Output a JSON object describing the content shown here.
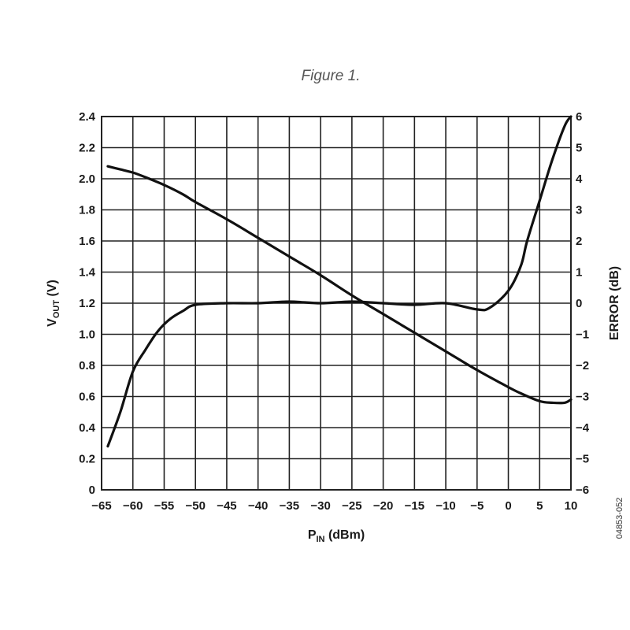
{
  "chart_data": {
    "type": "line",
    "caption": "Figure 1.",
    "figure_id": "04853-052",
    "xlabel": {
      "main": "P",
      "sub": "IN",
      "unit": " (dBm)"
    },
    "ylabel_left": {
      "main": "V",
      "sub": "OUT",
      "unit": " (V)"
    },
    "ylabel_right": "ERROR (dB)",
    "xlim": [
      -65,
      10
    ],
    "ylim_left": [
      0,
      2.4
    ],
    "ylim_right": [
      -6,
      6
    ],
    "x_ticks": [
      "−65",
      "−60",
      "−55",
      "−50",
      "−45",
      "−40",
      "−35",
      "−30",
      "−25",
      "−20",
      "−15",
      "−10",
      "−5",
      "0",
      "5",
      "10"
    ],
    "y_left_ticks": [
      "0",
      "0.2",
      "0.4",
      "0.6",
      "0.8",
      "1.0",
      "1.2",
      "1.4",
      "1.6",
      "1.8",
      "2.0",
      "2.2",
      "2.4"
    ],
    "y_right_ticks": [
      "−6",
      "−5",
      "−4",
      "−3",
      "−2",
      "−1",
      "0",
      "1",
      "2",
      "3",
      "4",
      "5",
      "6"
    ],
    "grid": true,
    "series": [
      {
        "axis": "left",
        "x": [
          -64,
          -62,
          -60,
          -58,
          -55,
          -52,
          -50,
          -45,
          -40,
          -35,
          -30,
          -25,
          -20,
          -15,
          -10,
          -5,
          0,
          2,
          5,
          7,
          9,
          10
        ],
        "values": [
          2.08,
          2.06,
          2.04,
          2.01,
          1.96,
          1.9,
          1.85,
          1.74,
          1.62,
          1.5,
          1.38,
          1.25,
          1.13,
          1.01,
          0.89,
          0.77,
          0.66,
          0.62,
          0.57,
          0.56,
          0.56,
          0.58
        ]
      },
      {
        "axis": "right",
        "x": [
          -64,
          -62,
          -60,
          -58,
          -56,
          -54,
          -52,
          -50,
          -45,
          -40,
          -35,
          -30,
          -25,
          -20,
          -15,
          -10,
          -5,
          -3,
          0,
          2,
          3,
          5,
          7,
          9,
          10
        ],
        "values": [
          -4.6,
          -3.5,
          -2.2,
          -1.5,
          -0.9,
          -0.5,
          -0.25,
          -0.05,
          0.0,
          0.0,
          0.05,
          0.0,
          0.05,
          0.0,
          -0.05,
          0.0,
          -0.2,
          -0.15,
          0.4,
          1.2,
          2.0,
          3.3,
          4.6,
          5.7,
          6.0
        ]
      }
    ]
  }
}
